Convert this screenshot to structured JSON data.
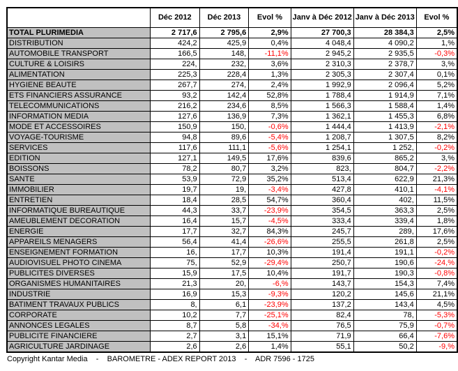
{
  "colors": {
    "negative_text": "#ff0000",
    "label_column_bg": "#c0c0c0",
    "border": "#000000",
    "background": "#ffffff"
  },
  "chart_data": {
    "type": "table",
    "title": "BAROMETRE - ADEX REPORT 2013",
    "columns": [
      "",
      "Déc 2012",
      "Déc 2013",
      "Evol %",
      "Janv à Déc 2012",
      "Janv à Déc 2013",
      "Evol %"
    ],
    "rows": [
      {
        "label": "TOTAL PLURIMEDIA",
        "bold": true,
        "values": [
          "2 717,6",
          "2 795,6",
          "2,9%",
          "27 700,3",
          "28 384,3",
          "2,5%"
        ]
      },
      {
        "label": "DISTRIBUTION",
        "bold": false,
        "values": [
          "424,2",
          "425,9",
          "0,4%",
          "4 048,4",
          "4 090,2",
          "1,%"
        ]
      },
      {
        "label": "AUTOMOBILE TRANSPORT",
        "bold": false,
        "values": [
          "166,5",
          "148,",
          "-11,1%",
          "2 945,2",
          "2 935,5",
          "-0,3%"
        ]
      },
      {
        "label": "CULTURE & LOISIRS",
        "bold": false,
        "values": [
          "224,",
          "232,",
          "3,6%",
          "2 310,3",
          "2 378,7",
          "3,%"
        ]
      },
      {
        "label": "ALIMENTATION",
        "bold": false,
        "values": [
          "225,3",
          "228,4",
          "1,3%",
          "2 305,3",
          "2 307,4",
          "0,1%"
        ]
      },
      {
        "label": "HYGIENE BEAUTE",
        "bold": false,
        "values": [
          "267,7",
          "274,",
          "2,4%",
          "1 992,9",
          "2 096,4",
          "5,2%"
        ]
      },
      {
        "label": "ETS FINANCIERS ASSURANCE",
        "bold": false,
        "values": [
          "93,2",
          "142,4",
          "52,8%",
          "1 788,4",
          "1 914,9",
          "7,1%"
        ]
      },
      {
        "label": "TELECOMMUNICATIONS",
        "bold": false,
        "values": [
          "216,2",
          "234,6",
          "8,5%",
          "1 566,3",
          "1 588,4",
          "1,4%"
        ]
      },
      {
        "label": "INFORMATION MEDIA",
        "bold": false,
        "values": [
          "127,6",
          "136,9",
          "7,3%",
          "1 362,1",
          "1 455,3",
          "6,8%"
        ]
      },
      {
        "label": "MODE ET ACCESSOIRES",
        "bold": false,
        "values": [
          "150,9",
          "150,",
          "-0,6%",
          "1 444,4",
          "1 413,9",
          "-2,1%"
        ]
      },
      {
        "label": "VOYAGE-TOURISME",
        "bold": false,
        "values": [
          "94,8",
          "89,6",
          "-5,4%",
          "1 208,7",
          "1 307,5",
          "8,2%"
        ]
      },
      {
        "label": "SERVICES",
        "bold": false,
        "values": [
          "117,6",
          "111,1",
          "-5,6%",
          "1 254,1",
          "1 252,",
          "-0,2%"
        ]
      },
      {
        "label": "EDITION",
        "bold": false,
        "values": [
          "127,1",
          "149,5",
          "17,6%",
          "839,6",
          "865,2",
          "3,%"
        ]
      },
      {
        "label": "BOISSONS",
        "bold": false,
        "values": [
          "78,2",
          "80,7",
          "3,2%",
          "823,",
          "804,7",
          "-2,2%"
        ]
      },
      {
        "label": "SANTE",
        "bold": false,
        "values": [
          "53,9",
          "72,9",
          "35,2%",
          "513,4",
          "622,9",
          "21,3%"
        ]
      },
      {
        "label": "IMMOBILIER",
        "bold": false,
        "values": [
          "19,7",
          "19,",
          "-3,4%",
          "427,8",
          "410,1",
          "-4,1%"
        ]
      },
      {
        "label": "ENTRETIEN",
        "bold": false,
        "values": [
          "18,4",
          "28,5",
          "54,7%",
          "360,4",
          "402,",
          "11,5%"
        ]
      },
      {
        "label": "INFORMATIQUE BUREAUTIQUE",
        "bold": false,
        "values": [
          "44,3",
          "33,7",
          "-23,9%",
          "354,5",
          "363,3",
          "2,5%"
        ]
      },
      {
        "label": "AMEUBLEMENT DECORATION",
        "bold": false,
        "values": [
          "16,4",
          "15,7",
          "-4,5%",
          "333,4",
          "339,4",
          "1,8%"
        ]
      },
      {
        "label": "ENERGIE",
        "bold": false,
        "values": [
          "17,7",
          "32,7",
          "84,3%",
          "245,7",
          "289,",
          "17,6%"
        ]
      },
      {
        "label": "APPAREILS MENAGERS",
        "bold": false,
        "values": [
          "56,4",
          "41,4",
          "-26,6%",
          "255,5",
          "261,8",
          "2,5%"
        ]
      },
      {
        "label": "ENSEIGNEMENT FORMATION",
        "bold": false,
        "values": [
          "16,",
          "17,7",
          "10,3%",
          "191,4",
          "191,1",
          "-0,2%"
        ]
      },
      {
        "label": "AUDIOVISUEL PHOTO CINEMA",
        "bold": false,
        "values": [
          "75,",
          "52,9",
          "-29,4%",
          "250,7",
          "190,6",
          "-24,%"
        ]
      },
      {
        "label": "PUBLICITES DIVERSES",
        "bold": false,
        "values": [
          "15,9",
          "17,5",
          "10,4%",
          "191,7",
          "190,3",
          "-0,8%"
        ]
      },
      {
        "label": "ORGANISMES HUMANITAIRES",
        "bold": false,
        "values": [
          "21,3",
          "20,",
          "-6,%",
          "143,7",
          "154,3",
          "7,4%"
        ]
      },
      {
        "label": "INDUSTRIE",
        "bold": false,
        "values": [
          "16,9",
          "15,3",
          "-9,3%",
          "120,2",
          "145,6",
          "21,1%"
        ]
      },
      {
        "label": "BATIMENT TRAVAUX PUBLICS",
        "bold": false,
        "values": [
          "8,",
          "6,1",
          "-23,9%",
          "137,2",
          "143,4",
          "4,5%"
        ]
      },
      {
        "label": "CORPORATE",
        "bold": false,
        "values": [
          "10,2",
          "7,7",
          "-25,1%",
          "82,4",
          "78,",
          "-5,3%"
        ]
      },
      {
        "label": "ANNONCES LEGALES",
        "bold": false,
        "values": [
          "8,7",
          "5,8",
          "-34,%",
          "76,5",
          "75,9",
          "-0,7%"
        ]
      },
      {
        "label": "PUBLICITE FINANCIERE",
        "bold": false,
        "values": [
          "2,7",
          "3,1",
          "15,1%",
          "71,9",
          "66,4",
          "-7,6%"
        ]
      },
      {
        "label": "AGRICULTURE JARDINAGE",
        "bold": false,
        "values": [
          "2,6",
          "2,6",
          "1,4%",
          "55,1",
          "50,2",
          "-9,%"
        ]
      }
    ],
    "footer": "Copyright Kantar Media    -    BAROMETRE - ADEX REPORT 2013    -    ADR 7596 - 1725"
  }
}
